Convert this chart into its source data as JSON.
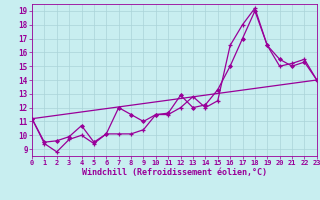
{
  "bg_color": "#c8eef0",
  "grid_color": "#aad4d8",
  "line_color": "#990099",
  "xlabel": "Windchill (Refroidissement éolien,°C)",
  "xlim": [
    0,
    23
  ],
  "ylim": [
    8.5,
    19.5
  ],
  "xticks": [
    0,
    1,
    2,
    3,
    4,
    5,
    6,
    7,
    8,
    9,
    10,
    11,
    12,
    13,
    14,
    15,
    16,
    17,
    18,
    19,
    20,
    21,
    22,
    23
  ],
  "yticks": [
    9,
    10,
    11,
    12,
    13,
    14,
    15,
    16,
    17,
    18,
    19
  ],
  "s1x": [
    0,
    1,
    2,
    3,
    4,
    5,
    6,
    7,
    8,
    9,
    10,
    11,
    12,
    13,
    14,
    15,
    16,
    17,
    18,
    19,
    20,
    21,
    22,
    23
  ],
  "s1y": [
    11.2,
    9.4,
    8.8,
    9.7,
    10.0,
    9.4,
    10.1,
    10.1,
    10.1,
    10.4,
    11.5,
    11.5,
    12.0,
    12.8,
    12.0,
    12.5,
    16.5,
    18.0,
    19.2,
    16.5,
    15.0,
    15.2,
    15.5,
    14.0
  ],
  "s2x": [
    0,
    1,
    2,
    3,
    4,
    5,
    6,
    7,
    8,
    9,
    10,
    11,
    12,
    13,
    14,
    15,
    16,
    17,
    18,
    19,
    20,
    21,
    22,
    23
  ],
  "s2y": [
    11.2,
    9.5,
    9.6,
    9.9,
    10.7,
    9.5,
    10.1,
    12.0,
    11.5,
    11.0,
    11.5,
    11.6,
    12.9,
    12.0,
    12.2,
    13.3,
    15.0,
    17.0,
    19.0,
    16.5,
    15.5,
    15.0,
    15.3,
    14.0
  ],
  "s3x": [
    0,
    23
  ],
  "s3y": [
    11.2,
    14.0
  ]
}
